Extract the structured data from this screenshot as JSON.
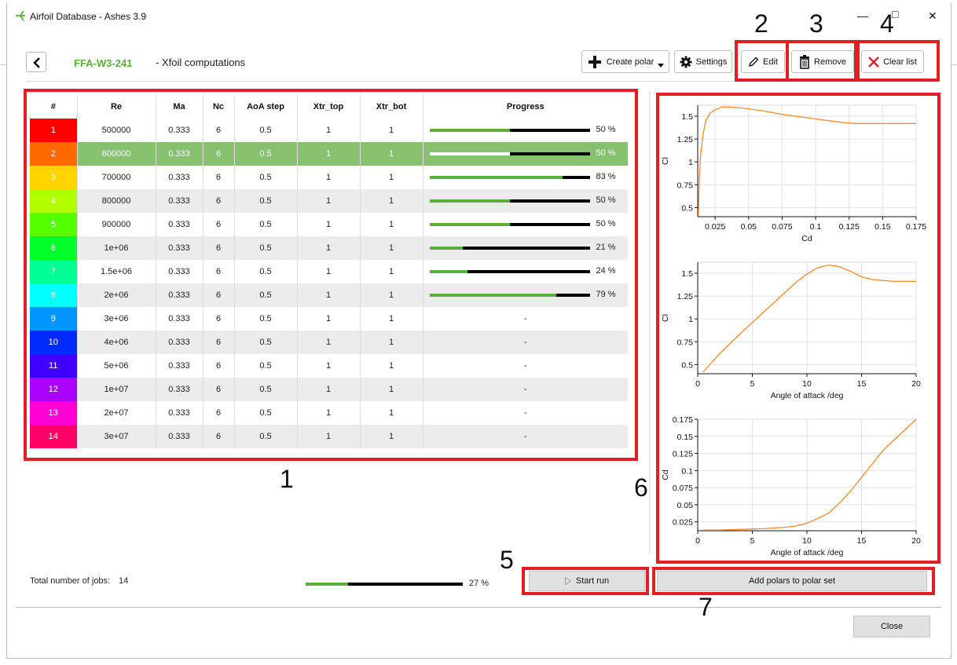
{
  "window": {
    "title": "Airfoil Database - Ashes 3.9",
    "minimize": "—",
    "maximize": "□",
    "close": "✕"
  },
  "header": {
    "airfoil_name": "FFA-W3-241",
    "subtitle": "- Xfoil computations"
  },
  "toolbar": {
    "create_polar": "Create polar",
    "settings": "Settings",
    "edit": "Edit",
    "remove": "Remove",
    "clear_list": "Clear list"
  },
  "table": {
    "columns": [
      "#",
      "Re",
      "Ma",
      "Nc",
      "AoA step",
      "Xtr_top",
      "Xtr_bot",
      "Progress"
    ],
    "rows": [
      {
        "num": "1",
        "re": "500000",
        "ma": "0.333",
        "nc": "6",
        "aoa": "0.5",
        "xtop": "1",
        "xbot": "1",
        "progress": 0.5,
        "progress_text": "50 %",
        "color": "#ff0000"
      },
      {
        "num": "2",
        "re": "600000",
        "ma": "0.333",
        "nc": "6",
        "aoa": "0.5",
        "xtop": "1",
        "xbot": "1",
        "progress": 0.5,
        "progress_text": "50 %",
        "color": "#ff6a00"
      },
      {
        "num": "3",
        "re": "700000",
        "ma": "0.333",
        "nc": "6",
        "aoa": "0.5",
        "xtop": "1",
        "xbot": "1",
        "progress": 0.83,
        "progress_text": "83 %",
        "color": "#ffd500"
      },
      {
        "num": "4",
        "re": "800000",
        "ma": "0.333",
        "nc": "6",
        "aoa": "0.5",
        "xtop": "1",
        "xbot": "1",
        "progress": 0.5,
        "progress_text": "50 %",
        "color": "#b2ff00"
      },
      {
        "num": "5",
        "re": "900000",
        "ma": "0.333",
        "nc": "6",
        "aoa": "0.5",
        "xtop": "1",
        "xbot": "1",
        "progress": 0.5,
        "progress_text": "50 %",
        "color": "#55ff00"
      },
      {
        "num": "6",
        "re": "1e+06",
        "ma": "0.333",
        "nc": "6",
        "aoa": "0.5",
        "xtop": "1",
        "xbot": "1",
        "progress": 0.21,
        "progress_text": "21 %",
        "color": "#00ff2a"
      },
      {
        "num": "7",
        "re": "1.5e+06",
        "ma": "0.333",
        "nc": "6",
        "aoa": "0.5",
        "xtop": "1",
        "xbot": "1",
        "progress": 0.24,
        "progress_text": "24 %",
        "color": "#00ff95"
      },
      {
        "num": "8",
        "re": "2e+06",
        "ma": "0.333",
        "nc": "6",
        "aoa": "0.5",
        "xtop": "1",
        "xbot": "1",
        "progress": 0.79,
        "progress_text": "79 %",
        "color": "#00ffff"
      },
      {
        "num": "9",
        "re": "3e+06",
        "ma": "0.333",
        "nc": "6",
        "aoa": "0.5",
        "xtop": "1",
        "xbot": "1",
        "progress": null,
        "progress_text": "-",
        "color": "#0095ff"
      },
      {
        "num": "10",
        "re": "4e+06",
        "ma": "0.333",
        "nc": "6",
        "aoa": "0.5",
        "xtop": "1",
        "xbot": "1",
        "progress": null,
        "progress_text": "-",
        "color": "#002aff"
      },
      {
        "num": "11",
        "re": "5e+06",
        "ma": "0.333",
        "nc": "6",
        "aoa": "0.5",
        "xtop": "1",
        "xbot": "1",
        "progress": null,
        "progress_text": "-",
        "color": "#4000ff"
      },
      {
        "num": "12",
        "re": "1e+07",
        "ma": "0.333",
        "nc": "6",
        "aoa": "0.5",
        "xtop": "1",
        "xbot": "1",
        "progress": null,
        "progress_text": "-",
        "color": "#aa00ff"
      },
      {
        "num": "13",
        "re": "2e+07",
        "ma": "0.333",
        "nc": "6",
        "aoa": "0.5",
        "xtop": "1",
        "xbot": "1",
        "progress": null,
        "progress_text": "-",
        "color": "#ff00d4"
      },
      {
        "num": "14",
        "re": "3e+07",
        "ma": "0.333",
        "nc": "6",
        "aoa": "0.5",
        "xtop": "1",
        "xbot": "1",
        "progress": null,
        "progress_text": "-",
        "color": "#ff0066"
      }
    ],
    "selected_row": "2"
  },
  "footer": {
    "total_label": "Total number of jobs:",
    "total_count": "14",
    "total_progress": 0.27,
    "total_progress_text": "27 %",
    "start_run": "Start run",
    "add_polars": "Add polars to polar set",
    "close": "Close"
  },
  "annotations": {
    "c1": "1",
    "c2": "2",
    "c3": "3",
    "c4": "4",
    "c5": "5",
    "c6": "6",
    "c7": "7"
  },
  "colors": {
    "accent_green": "#5aae3c",
    "selection_green": "#85c16f",
    "curve_orange": "#ff8a2a",
    "annotation_red": "#e21d24"
  },
  "chart_data": [
    {
      "type": "line",
      "xlabel": "Cd",
      "ylabel": "Cl",
      "xlim": [
        0.012,
        0.175
      ],
      "ylim": [
        0.4,
        1.62
      ],
      "xticks": [
        "0.025",
        "0.05",
        "0.075",
        "0.1",
        "0.125",
        "0.15",
        "0.175"
      ],
      "yticks": [
        "0.5",
        "0.75",
        "1",
        "1.25",
        "1.5"
      ],
      "series": [
        {
          "x": [
            0.0125,
            0.013,
            0.014,
            0.016,
            0.018,
            0.021,
            0.025,
            0.03,
            0.035,
            0.045,
            0.06,
            0.075,
            0.09,
            0.1,
            0.11,
            0.12,
            0.13,
            0.14,
            0.15,
            0.165,
            0.175
          ],
          "y": [
            0.42,
            0.75,
            1.05,
            1.3,
            1.45,
            1.53,
            1.57,
            1.6,
            1.6,
            1.59,
            1.56,
            1.52,
            1.49,
            1.47,
            1.45,
            1.43,
            1.42,
            1.42,
            1.42,
            1.42,
            1.42
          ]
        }
      ]
    },
    {
      "type": "line",
      "xlabel": "Angle of attack /deg",
      "ylabel": "Cl",
      "xlim": [
        0,
        20
      ],
      "ylim": [
        0.4,
        1.62
      ],
      "xticks": [
        "0",
        "5",
        "10",
        "15",
        "20"
      ],
      "yticks": [
        "0.5",
        "0.75",
        "1",
        "1.25",
        "1.5"
      ],
      "series": [
        {
          "x": [
            0.5,
            2,
            4,
            6,
            8,
            9,
            10,
            11,
            12,
            13,
            14,
            15,
            16,
            17,
            18,
            19,
            20
          ],
          "y": [
            0.42,
            0.62,
            0.85,
            1.07,
            1.29,
            1.4,
            1.49,
            1.56,
            1.59,
            1.57,
            1.52,
            1.46,
            1.43,
            1.42,
            1.41,
            1.41,
            1.41
          ]
        }
      ]
    },
    {
      "type": "line",
      "xlabel": "Angle of attack /deg",
      "ylabel": "Cd",
      "xlim": [
        0,
        20
      ],
      "ylim": [
        0.012,
        0.175
      ],
      "xticks": [
        "0",
        "5",
        "10",
        "15",
        "20"
      ],
      "yticks": [
        "0.025",
        "0.05",
        "0.075",
        "0.1",
        "0.125",
        "0.15",
        "0.175"
      ],
      "series": [
        {
          "x": [
            0.5,
            2,
            4,
            6,
            8,
            9,
            10,
            11,
            12,
            13,
            14,
            15,
            16,
            17,
            18,
            19,
            20
          ],
          "y": [
            0.013,
            0.013,
            0.014,
            0.015,
            0.017,
            0.019,
            0.023,
            0.03,
            0.038,
            0.053,
            0.07,
            0.09,
            0.11,
            0.13,
            0.145,
            0.16,
            0.175
          ]
        }
      ]
    }
  ]
}
